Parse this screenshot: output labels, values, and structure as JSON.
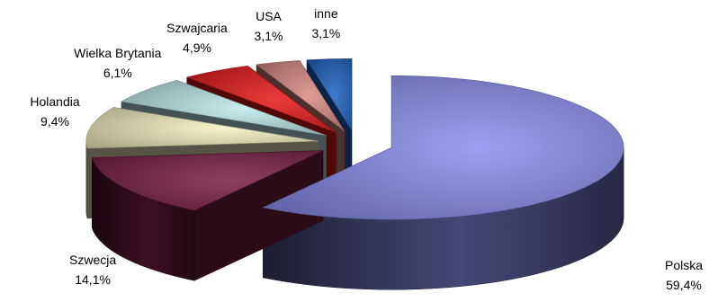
{
  "chart_data": {
    "type": "pie",
    "title": "",
    "three_d": true,
    "exploded": true,
    "slices": [
      {
        "label": "Polska",
        "value": 59.4,
        "value_label": "59,4%",
        "color": "#8a8ff0"
      },
      {
        "label": "Szwecja",
        "value": 14.1,
        "value_label": "14,1%",
        "color": "#7a1f45"
      },
      {
        "label": "Holandia",
        "value": 9.4,
        "value_label": "9,4%",
        "color": "#f7f3c4"
      },
      {
        "label": "Wielka Brytania",
        "value": 6.1,
        "value_label": "6,1%",
        "color": "#bfeaec"
      },
      {
        "label": "Szwajcaria",
        "value": 4.9,
        "value_label": "4,9%",
        "color": "#e81818"
      },
      {
        "label": "USA",
        "value": 3.1,
        "value_label": "3,1%",
        "color": "#d98a84"
      },
      {
        "label": "inne",
        "value": 3.1,
        "value_label": "3,1%",
        "color": "#1f62c2"
      }
    ]
  }
}
